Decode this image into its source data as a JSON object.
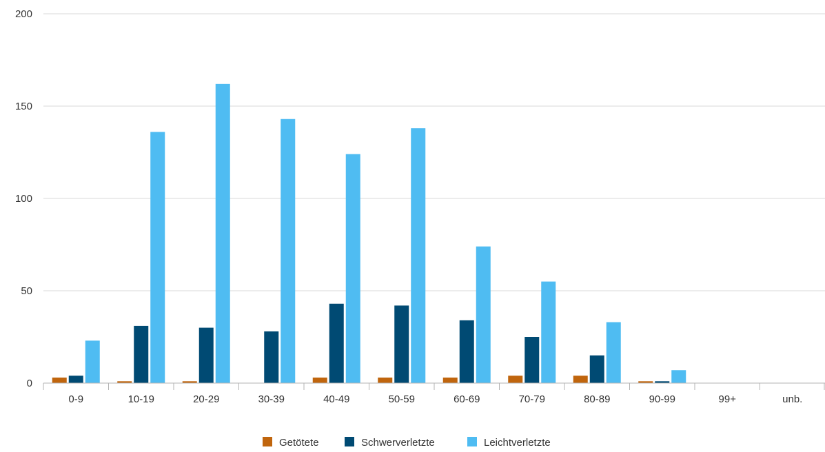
{
  "chart_data": {
    "type": "bar",
    "title": "",
    "xlabel": "",
    "ylabel": "",
    "categories": [
      "0-9",
      "10-19",
      "20-29",
      "30-39",
      "40-49",
      "50-59",
      "60-69",
      "70-79",
      "80-89",
      "90-99",
      "99+",
      "unb."
    ],
    "series": [
      {
        "name": "Getötete",
        "color": "#c0650d",
        "values": [
          3,
          1,
          1,
          0,
          3,
          3,
          3,
          4,
          4,
          1,
          0,
          0
        ]
      },
      {
        "name": "Schwerverletzte",
        "color": "#004a73",
        "values": [
          4,
          31,
          30,
          28,
          43,
          42,
          34,
          25,
          15,
          1,
          0,
          0
        ]
      },
      {
        "name": "Leichtverletzte",
        "color": "#4fbcf2",
        "values": [
          23,
          136,
          162,
          143,
          124,
          138,
          74,
          55,
          33,
          7,
          0,
          0
        ]
      }
    ],
    "ylim": [
      0,
      200
    ],
    "yticks": [
      0,
      50,
      100,
      150,
      200
    ],
    "grid": true,
    "legend_position": "bottom"
  }
}
